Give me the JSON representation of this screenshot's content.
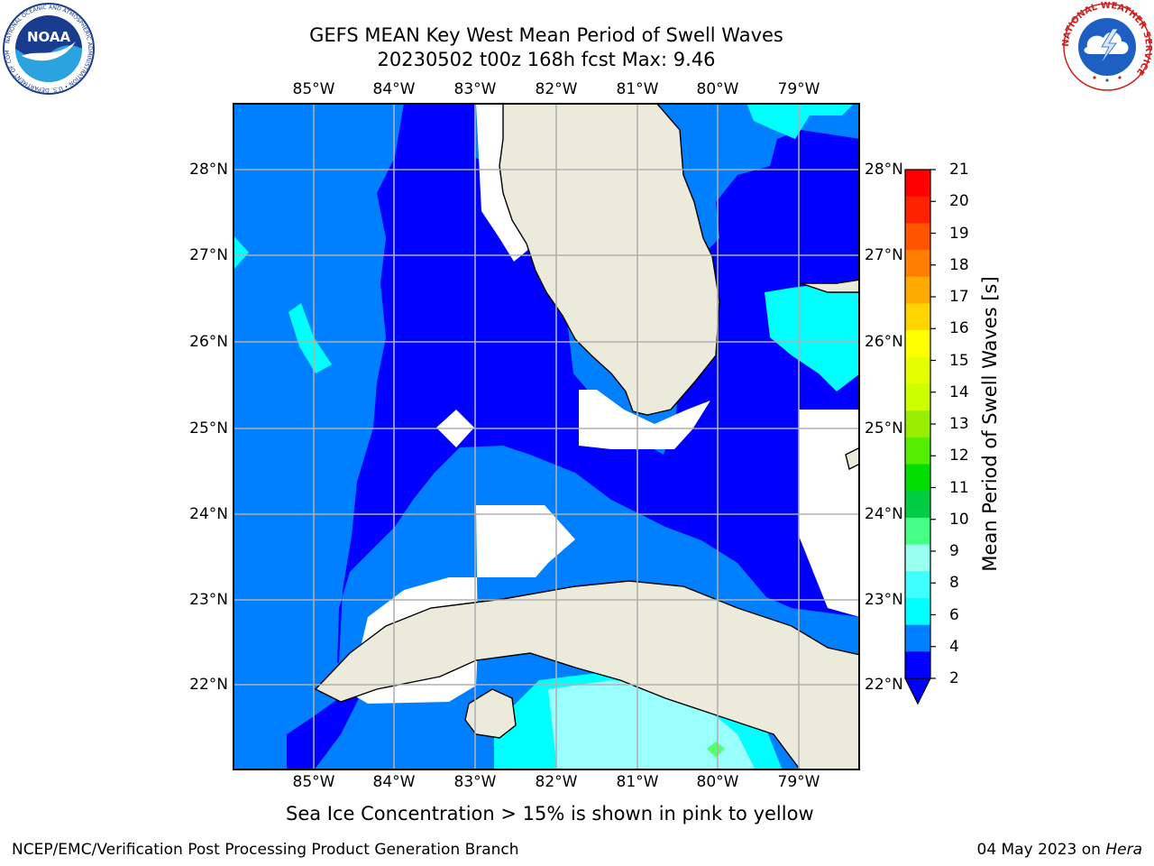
{
  "header": {
    "title_line1": "GEFS MEAN Key West Mean Period of Swell Waves",
    "title_line2": "20230502 t00z 168h fcst   Max: 9.46"
  },
  "map": {
    "lon_range": [
      -86,
      -78.3
    ],
    "lat_range": [
      21.05,
      28.75
    ],
    "lon_labels": [
      "85°W",
      "84°W",
      "83°W",
      "82°W",
      "81°W",
      "80°W",
      "79°W"
    ],
    "lat_labels": [
      "28°N",
      "27°N",
      "26°N",
      "25°N",
      "24°N",
      "23°N",
      "22°N"
    ],
    "colors": {
      "band_2_4": "#0080ff",
      "band_lt_2": "#0000ff",
      "band_4_6": "#00ffff",
      "band_6_8": "#40ffff",
      "band_8_9": "#99ffff",
      "band_9_10": "#55ff70",
      "land": "#ecebdb",
      "no_data": "#ffffff",
      "grid": "#b0b0b0"
    }
  },
  "colorbar": {
    "label": "Mean Period of Swell Waves [s]",
    "ticks": [
      "21",
      "20",
      "19",
      "18",
      "17",
      "16",
      "15",
      "14",
      "13",
      "12",
      "11",
      "10",
      "9",
      "8",
      "6",
      "4",
      "2"
    ],
    "colors": [
      "#ff0000",
      "#ff2200",
      "#ff5500",
      "#ff8000",
      "#ffaa00",
      "#ffd400",
      "#ffff00",
      "#e6ff00",
      "#ccff00",
      "#99ee00",
      "#55ee00",
      "#00dd00",
      "#00cc44",
      "#44ff88",
      "#99ffee",
      "#40ffff",
      "#00ffff",
      "#0080ff",
      "#0000ff"
    ]
  },
  "caption": "Sea Ice Concentration > 15% is shown in pink to yellow",
  "footer": {
    "left": "NCEP/EMC/Verification Post Processing Product Generation Branch",
    "date": "04 May 2023 on ",
    "machine": "Hera"
  },
  "logos": {
    "noaa": "NOAA",
    "noaa_ring": "NATIONAL OCEANIC AND ATMOSPHERIC ADMINISTRATION • U.S. DEPARTMENT OF COMMERCE",
    "nws_ring": "NATIONAL WEATHER SERVICE"
  }
}
